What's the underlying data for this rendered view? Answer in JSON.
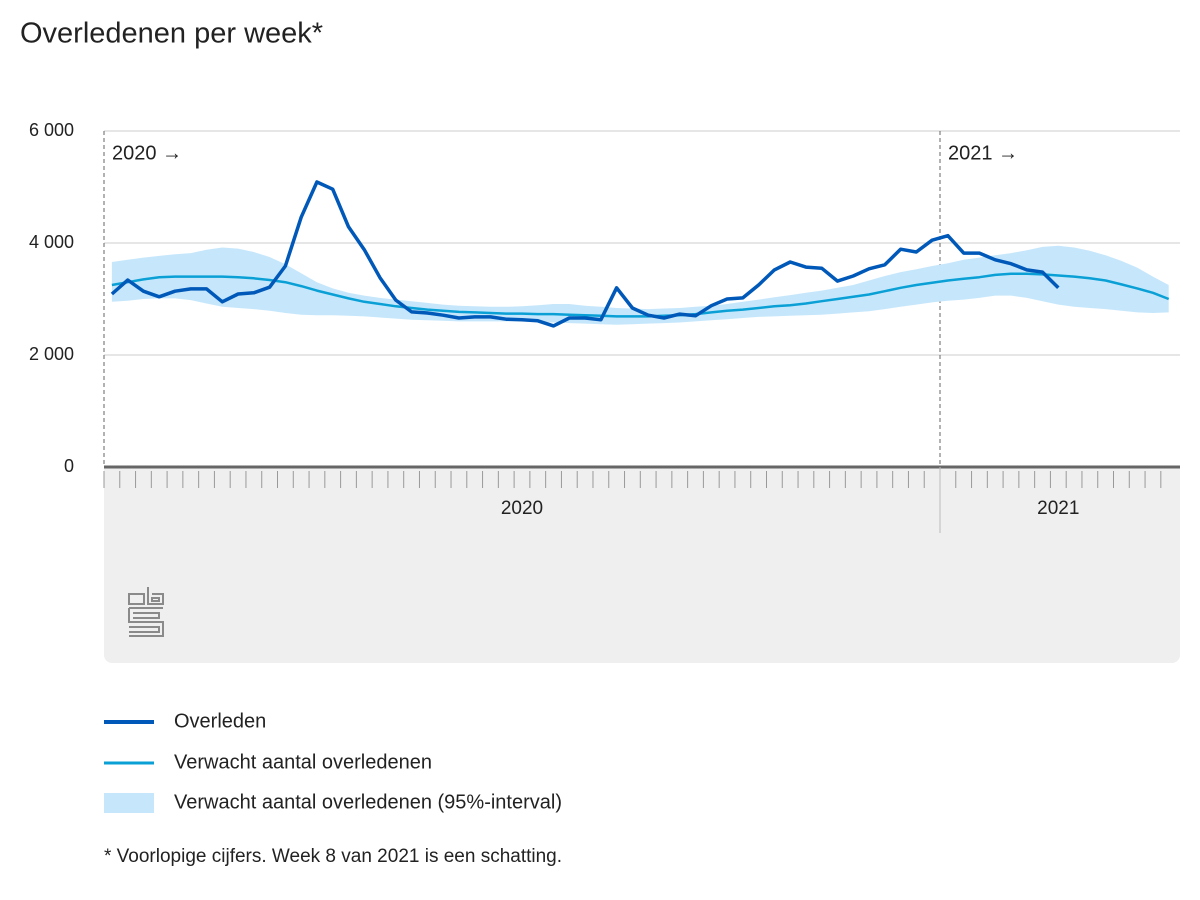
{
  "chart_data": {
    "type": "line",
    "title": "Overledenen per week*",
    "footnote": "* Voorlopige cijfers. Week 8 van 2021 is een schatting.",
    "annotations": [
      "2020 →",
      "2021 →"
    ],
    "categories": [
      "2020",
      "2020",
      "2020",
      "2020",
      "2020",
      "2020",
      "2020",
      "2020",
      "2020",
      "2020",
      "2020",
      "2020",
      "2020",
      "2020",
      "2020",
      "2020",
      "2020",
      "2020",
      "2020",
      "2020",
      "2020",
      "2020",
      "2020",
      "2020",
      "2020",
      "2020",
      "2020",
      "2020",
      "2020",
      "2020",
      "2020",
      "2020",
      "2020",
      "2020",
      "2020",
      "2020",
      "2020",
      "2020",
      "2020",
      "2020",
      "2020",
      "2020",
      "2020",
      "2020",
      "2020",
      "2020",
      "2020",
      "2020",
      "2020",
      "2020",
      "2020",
      "2020",
      "2020",
      "2021",
      "2021",
      "2021",
      "2021",
      "2021",
      "2021",
      "2021",
      "2021",
      "2021",
      "2021",
      "2021",
      "2021",
      "2021",
      "2021",
      "2021"
    ],
    "ylim": [
      0,
      6000
    ],
    "yticks": [
      0,
      {
        "value": 2000,
        "label": "2 000"
      },
      {
        "value": 4000,
        "label": "4 000"
      },
      {
        "value": 6000,
        "label": "6 000"
      }
    ],
    "grid": true,
    "series": [
      {
        "name": "Overleden",
        "color": "#0058b8",
        "values": [
          3090,
          3340,
          3140,
          3040,
          3140,
          3180,
          3180,
          2950,
          3090,
          3110,
          3210,
          3590,
          4460,
          5090,
          4960,
          4290,
          3880,
          3380,
          2980,
          2770,
          2750,
          2710,
          2660,
          2680,
          2680,
          2640,
          2630,
          2610,
          2520,
          2660,
          2660,
          2630,
          3200,
          2840,
          2710,
          2660,
          2730,
          2700,
          2880,
          3000,
          3020,
          3250,
          3520,
          3660,
          3570,
          3550,
          3320,
          3410,
          3540,
          3610,
          3890,
          3840,
          4050,
          4130,
          3820,
          3820,
          3700,
          3630,
          3520,
          3480,
          3200,
          null,
          null,
          null,
          null,
          null,
          null,
          null
        ]
      },
      {
        "name": "Verwacht aantal overledenen",
        "color": "#0aa0d6",
        "values": [
          3250,
          3300,
          3350,
          3390,
          3400,
          3400,
          3400,
          3400,
          3390,
          3370,
          3340,
          3300,
          3230,
          3150,
          3080,
          3010,
          2950,
          2910,
          2870,
          2840,
          2810,
          2790,
          2770,
          2760,
          2750,
          2740,
          2740,
          2730,
          2730,
          2720,
          2710,
          2700,
          2690,
          2690,
          2690,
          2700,
          2710,
          2730,
          2760,
          2790,
          2810,
          2840,
          2870,
          2890,
          2920,
          2960,
          3000,
          3040,
          3080,
          3140,
          3200,
          3250,
          3290,
          3330,
          3360,
          3390,
          3430,
          3450,
          3450,
          3440,
          3420,
          3400,
          3370,
          3330,
          3260,
          3190,
          3110,
          3000
        ]
      }
    ],
    "band": {
      "name": "Verwacht aantal overledenen (95%-interval)",
      "color": "#c6e7fb",
      "lower": [
        2950,
        2970,
        3000,
        3010,
        3010,
        2980,
        2920,
        2860,
        2840,
        2820,
        2790,
        2750,
        2720,
        2710,
        2710,
        2700,
        2690,
        2670,
        2650,
        2630,
        2620,
        2610,
        2600,
        2600,
        2600,
        2600,
        2600,
        2590,
        2580,
        2570,
        2560,
        2550,
        2540,
        2550,
        2560,
        2570,
        2580,
        2600,
        2620,
        2640,
        2660,
        2680,
        2690,
        2700,
        2710,
        2720,
        2740,
        2760,
        2780,
        2820,
        2860,
        2900,
        2940,
        2970,
        2990,
        3020,
        3060,
        3060,
        3020,
        2960,
        2900,
        2860,
        2840,
        2820,
        2790,
        2760,
        2750,
        2760
      ],
      "upper": [
        3660,
        3700,
        3740,
        3770,
        3800,
        3820,
        3880,
        3920,
        3900,
        3840,
        3750,
        3620,
        3460,
        3300,
        3190,
        3110,
        3060,
        3020,
        2990,
        2960,
        2930,
        2900,
        2880,
        2870,
        2860,
        2860,
        2870,
        2890,
        2910,
        2910,
        2880,
        2860,
        2840,
        2830,
        2820,
        2830,
        2840,
        2860,
        2880,
        2910,
        2950,
        2990,
        3030,
        3070,
        3110,
        3150,
        3200,
        3250,
        3330,
        3410,
        3480,
        3530,
        3590,
        3640,
        3700,
        3740,
        3780,
        3820,
        3870,
        3930,
        3950,
        3920,
        3860,
        3780,
        3680,
        3560,
        3400,
        3250
      ]
    }
  }
}
